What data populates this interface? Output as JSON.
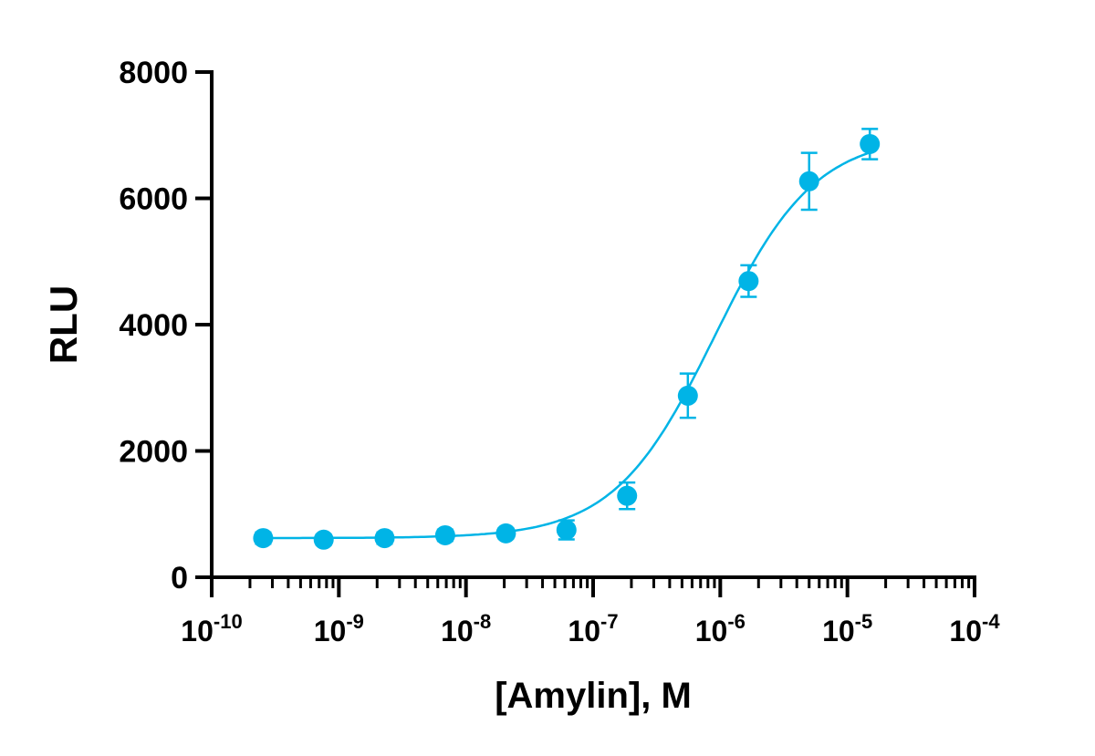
{
  "chart_data": {
    "type": "scatter",
    "title": "",
    "xlabel": "[Amylin], M",
    "ylabel": "RLU",
    "xscale": "log",
    "xlim": [
      1e-10,
      0.0001
    ],
    "ylim": [
      0,
      8000
    ],
    "grid": false,
    "color": "#00b4e6",
    "x_ticks": [
      {
        "base": "10",
        "exp": "-10"
      },
      {
        "base": "10",
        "exp": "-9"
      },
      {
        "base": "10",
        "exp": "-8"
      },
      {
        "base": "10",
        "exp": "-7"
      },
      {
        "base": "10",
        "exp": "-6"
      },
      {
        "base": "10",
        "exp": "-5"
      },
      {
        "base": "10",
        "exp": "-4"
      }
    ],
    "y_ticks": [
      "0",
      "2000",
      "4000",
      "6000",
      "8000"
    ],
    "points": [
      {
        "x": 2.54e-10,
        "y": 620,
        "err": 90
      },
      {
        "x": 7.6e-10,
        "y": 595,
        "err": 80
      },
      {
        "x": 2.29e-09,
        "y": 620,
        "err": 90
      },
      {
        "x": 6.86e-09,
        "y": 665,
        "err": 90
      },
      {
        "x": 2.06e-08,
        "y": 695,
        "err": 80
      },
      {
        "x": 6.17e-08,
        "y": 750,
        "err": 150
      },
      {
        "x": 1.85e-07,
        "y": 1290,
        "err": 210
      },
      {
        "x": 5.56e-07,
        "y": 2875,
        "err": 350
      },
      {
        "x": 1.67e-06,
        "y": 4690,
        "err": 250
      },
      {
        "x": 5e-06,
        "y": 6270,
        "err": 450
      },
      {
        "x": 1.5e-05,
        "y": 6860,
        "err": 240
      }
    ],
    "fit": {
      "model": "4PL",
      "bottom": 620,
      "top": 7000,
      "ec50": 9e-07,
      "hill": 1.1
    }
  }
}
